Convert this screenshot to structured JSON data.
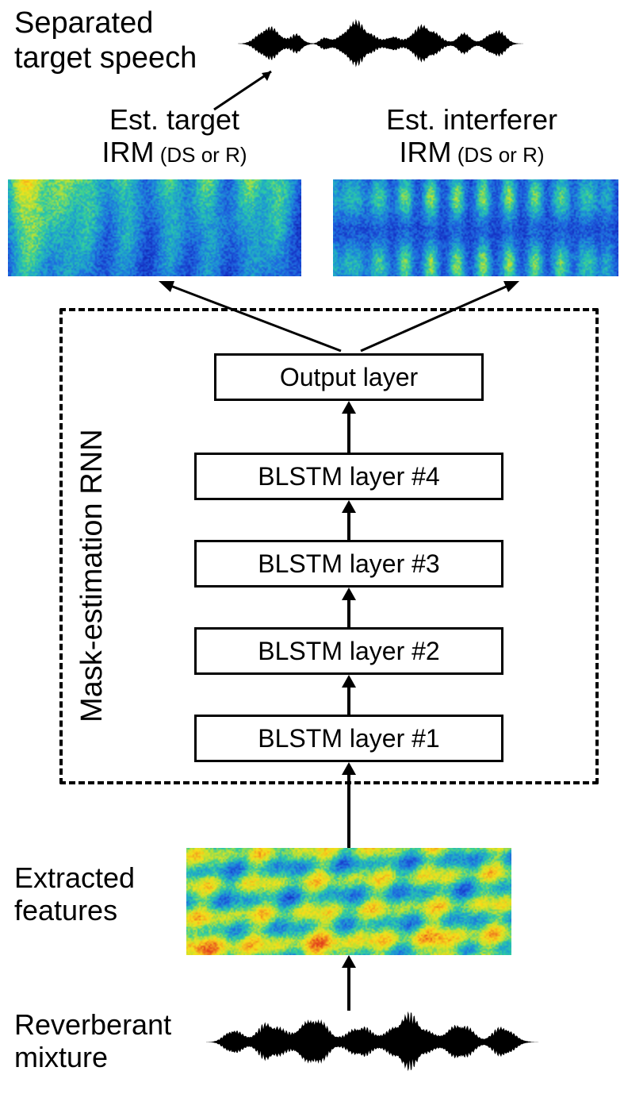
{
  "top": {
    "title_line1": "Separated",
    "title_line2": "target speech",
    "left_label_line1": "Est. target",
    "left_label_line2_a": "IRM",
    "left_label_line2_b": " (DS or R)",
    "right_label_line1": "Est. interferer",
    "right_label_line2_a": "IRM",
    "right_label_line2_b": " (DS or R)"
  },
  "rnn": {
    "vlabel": "Mask-estimation RNN",
    "layers": [
      "Output layer",
      "BLSTM layer #4",
      "BLSTM layer #3",
      "BLSTM layer #2",
      "BLSTM layer #1"
    ]
  },
  "bottom": {
    "features_line1": "Extracted",
    "features_line2": "features",
    "mixture_line1": "Reverberant",
    "mixture_line2": "mixture"
  },
  "style": {
    "text_color": "#000000",
    "bg_color": "#ffffff",
    "font_title": 38,
    "font_irm_main": 36,
    "font_irm_sub": 26,
    "font_layer": 32,
    "font_vlabel": 38,
    "border_width": 3,
    "dash_border_width": 4,
    "spec_palette": [
      "#0a1b8a",
      "#1530c4",
      "#1f66e0",
      "#1ea0d0",
      "#2fcf9f",
      "#b8e035",
      "#f6e21a",
      "#f39c1f",
      "#e23e1c"
    ],
    "target_spec_bias": 0.22,
    "interferer_spec_bias": 0.3,
    "features_spec_bias": 0.58
  }
}
